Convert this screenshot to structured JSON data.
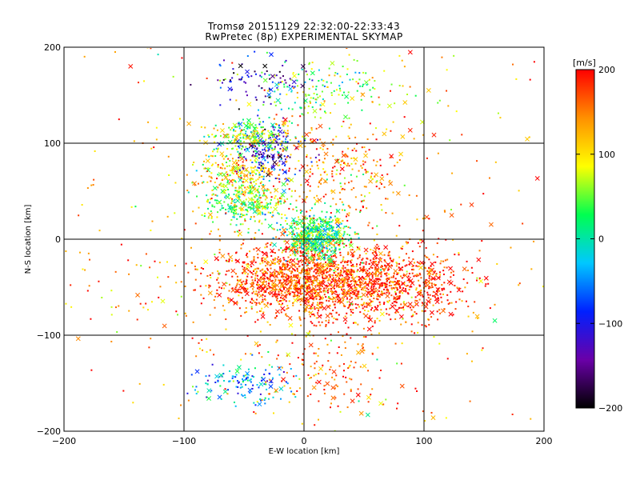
{
  "chart_data": {
    "type": "scatter",
    "title": "Tromsø 20151129 22:32:00-22:33:43",
    "subtitle": "RwPretec (8p) EXPERIMENTAL SKYMAP",
    "xlabel": "E-W location [km]",
    "ylabel": "N-S location [km]",
    "xlim": [
      -200,
      200
    ],
    "ylim": [
      -200,
      200
    ],
    "xticks": [
      -200,
      -100,
      0,
      100,
      200
    ],
    "yticks": [
      -200,
      -100,
      0,
      100,
      200
    ],
    "xtick_labels": [
      "−200",
      "−100",
      "0",
      "100",
      "200"
    ],
    "ytick_labels": [
      "−200",
      "−100",
      "0",
      "100",
      "200"
    ],
    "grid": true,
    "markers": [
      "small dot",
      "x"
    ],
    "colorbar": {
      "label": "[m/s]",
      "range": [
        -200,
        200
      ],
      "ticks": [
        200,
        100,
        0,
        -100,
        -200
      ],
      "tick_labels": [
        "200",
        "100",
        "0",
        "−100",
        "−200"
      ],
      "colormap": [
        "#000000",
        "#6a00a8",
        "#0020ff",
        "#00c8ff",
        "#00ff50",
        "#ffff00",
        "#ff9000",
        "#ff0000"
      ]
    },
    "clusters": [
      {
        "x": 5,
        "y": -42,
        "sx": 38,
        "sy": 20,
        "velocity": 175,
        "count": 1500
      },
      {
        "x": 75,
        "y": -45,
        "sx": 32,
        "sy": 20,
        "velocity": 185,
        "count": 500
      },
      {
        "x": 10,
        "y": 5,
        "sx": 14,
        "sy": 12,
        "velocity": 25,
        "count": 520
      },
      {
        "x": -45,
        "y": 35,
        "sx": 17,
        "sy": 11,
        "velocity": 45,
        "count": 280
      },
      {
        "x": -55,
        "y": 68,
        "sx": 17,
        "sy": 12,
        "velocity": 95,
        "count": 220
      },
      {
        "x": -30,
        "y": 92,
        "sx": 13,
        "sy": 14,
        "velocity": -110,
        "count": 170
      },
      {
        "x": -42,
        "y": 108,
        "sx": 17,
        "sy": 8,
        "velocity": 55,
        "count": 200
      },
      {
        "x": 15,
        "y": 155,
        "sx": 32,
        "sy": 14,
        "velocity": 55,
        "count": 170
      },
      {
        "x": -35,
        "y": 165,
        "sx": 22,
        "sy": 12,
        "velocity": -125,
        "count": 80
      },
      {
        "x": 25,
        "y": 70,
        "sx": 30,
        "sy": 25,
        "velocity": 150,
        "count": 230
      },
      {
        "x": -50,
        "y": -150,
        "sx": 20,
        "sy": 12,
        "velocity": -40,
        "count": 130
      },
      {
        "x": 20,
        "y": -140,
        "sx": 28,
        "sy": 22,
        "velocity": 165,
        "count": 130
      },
      {
        "x": 0,
        "y": 0,
        "sx": 115,
        "sy": 115,
        "velocity": 140,
        "count": 600
      }
    ]
  }
}
